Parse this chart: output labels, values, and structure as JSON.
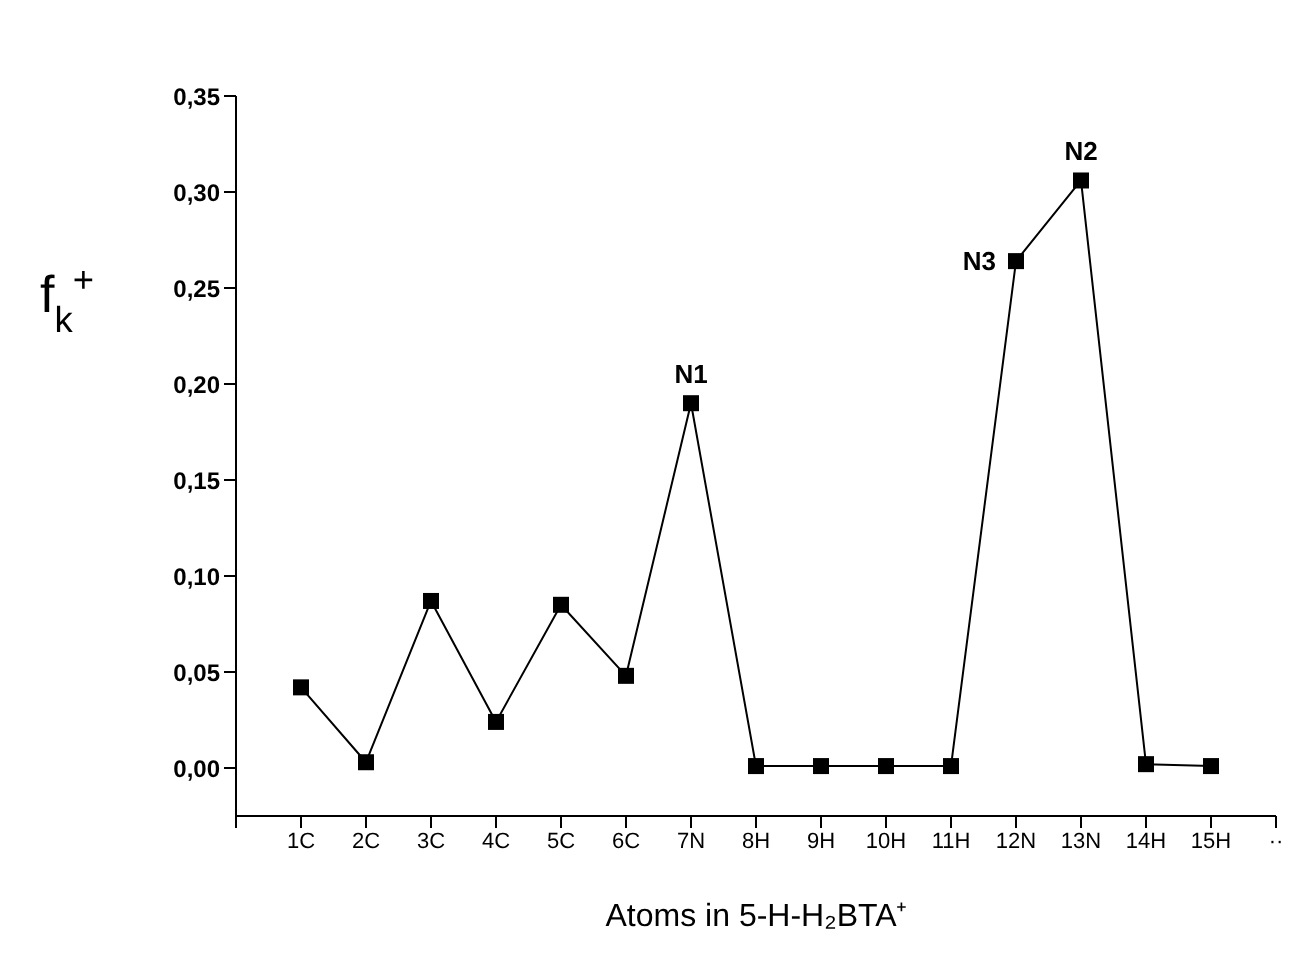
{
  "chart_data": {
    "type": "line",
    "xlabel": "Atoms in 5-H-H₂BTA⁺",
    "ylabel": "f$_{k}$$^{+}$",
    "categories": [
      null,
      "1C",
      "2C",
      "3C",
      "4C",
      "5C",
      "6C",
      "7N",
      "8H",
      "9H",
      "10H",
      "11H",
      "12N",
      "13N",
      "14H",
      "15H",
      "··"
    ],
    "series": [
      {
        "color": "#000000",
        "values": [
          null,
          0.042,
          0.003,
          0.087,
          0.024,
          0.085,
          0.048,
          0.19,
          0.001,
          0.001,
          0.001,
          0.001,
          0.264,
          0.306,
          0.002,
          0.001,
          null
        ]
      }
    ],
    "ylim": [
      -0.025,
      0.35
    ],
    "yticks": [
      {
        "value": 0,
        "label": "0,00"
      },
      {
        "value": 0.05,
        "label": "0,05"
      },
      {
        "value": 0.1,
        "label": "0,10"
      },
      {
        "value": 0.15,
        "label": "0,15"
      },
      {
        "value": 0.2,
        "label": "0,20"
      },
      {
        "value": 0.25,
        "label": "0,25"
      },
      {
        "value": 0.3,
        "label": "0,30"
      },
      {
        "value": 0.35,
        "label": "0,35"
      }
    ],
    "annotations": [
      {
        "text": "N1",
        "x": "7N",
        "y": 0.19
      },
      {
        "text": "N3",
        "x": "12N",
        "y": 0.264
      },
      {
        "text": "N2",
        "x": "13N",
        "y": 0.306
      }
    ],
    "marker": "square",
    "line_style": "solid",
    "grid": false,
    "legend": false
  }
}
